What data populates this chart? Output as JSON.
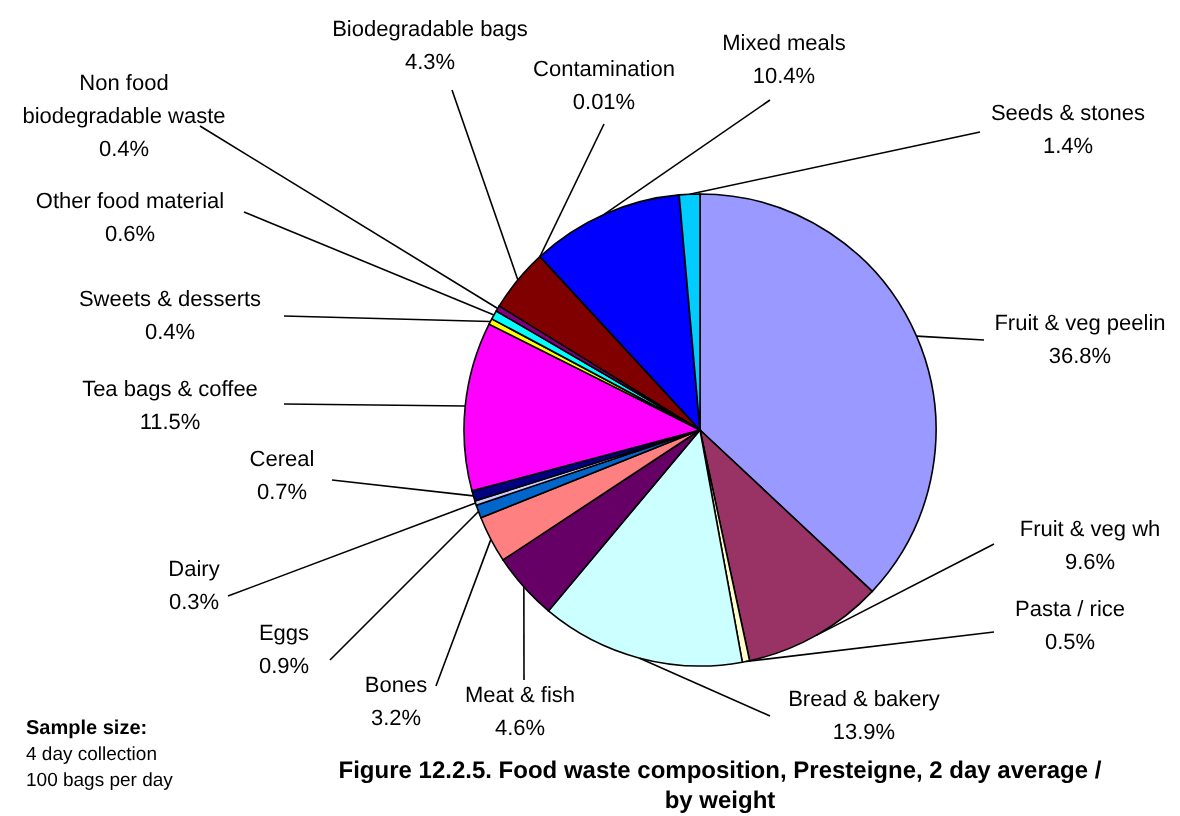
{
  "chart_data": {
    "type": "pie",
    "title": "Figure 12.2.5. Food waste composition, Presteigne, 2 day average / by weight",
    "annotations": [
      "Sample size:",
      "4 day collection",
      "100 bags per day"
    ],
    "categories": [
      "Fruit & veg peelin",
      "Fruit & veg wh",
      "Pasta / rice",
      "Bread & bakery",
      "Meat & fish",
      "Bones",
      "Eggs",
      "Dairy",
      "Cereal",
      "Tea bags & coffee",
      "Sweets & desserts",
      "Other food material",
      "Non food biodegradable waste",
      "Biodegradable bags",
      "Contamination",
      "Mixed meals",
      "Seeds & stones"
    ],
    "values": [
      36.8,
      9.6,
      0.5,
      13.9,
      4.6,
      3.2,
      0.9,
      0.3,
      0.7,
      11.5,
      0.4,
      0.6,
      0.4,
      4.3,
      0.01,
      10.4,
      1.4
    ],
    "value_labels": [
      "36.8%",
      "9.6%",
      "0.5%",
      "13.9%",
      "4.6%",
      "3.2%",
      "0.9%",
      "0.3%",
      "0.7%",
      "11.5%",
      "0.4%",
      "0.6%",
      "0.4%",
      "4.3%",
      "0.01%",
      "10.4%",
      "1.4%"
    ],
    "colors": [
      "#9999ff",
      "#993366",
      "#ffffcc",
      "#ccffff",
      "#660066",
      "#ff8080",
      "#0066cc",
      "#ccccff",
      "#000080",
      "#ff00ff",
      "#ffff00",
      "#00ffff",
      "#800080",
      "#800000",
      "#008080",
      "#0000ff",
      "#00ccff"
    ],
    "legend": false
  }
}
